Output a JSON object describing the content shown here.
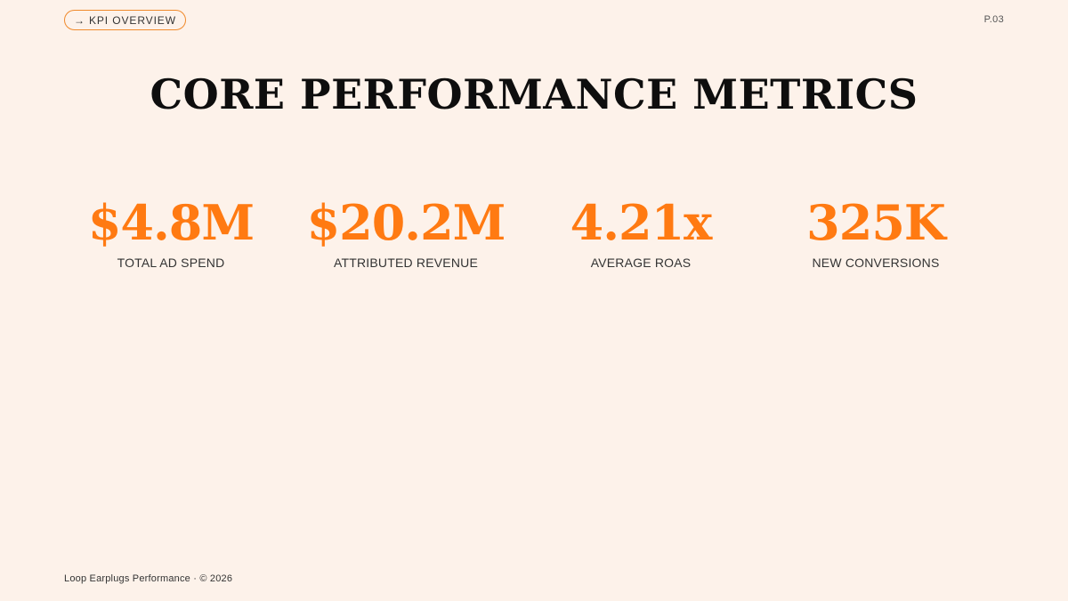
{
  "header": {
    "tag_arrow": "→",
    "tag_label": "KPI OVERVIEW",
    "page_number": "P.03"
  },
  "title": "CORE PERFORMANCE METRICS",
  "kpis": [
    {
      "value": "$4.8M",
      "label": "TOTAL AD SPEND"
    },
    {
      "value": "$20.2M",
      "label": "ATTRIBUTED REVENUE"
    },
    {
      "value": "4.21x",
      "label": "AVERAGE ROAS"
    },
    {
      "value": "325K",
      "label": "NEW CONVERSIONS"
    }
  ],
  "footer": {
    "text": "Loop Earplugs Performance · © 2026"
  },
  "colors": {
    "background": "#FDF2EA",
    "accent": "#FF7A12",
    "tag_border": "#F08A2C"
  }
}
